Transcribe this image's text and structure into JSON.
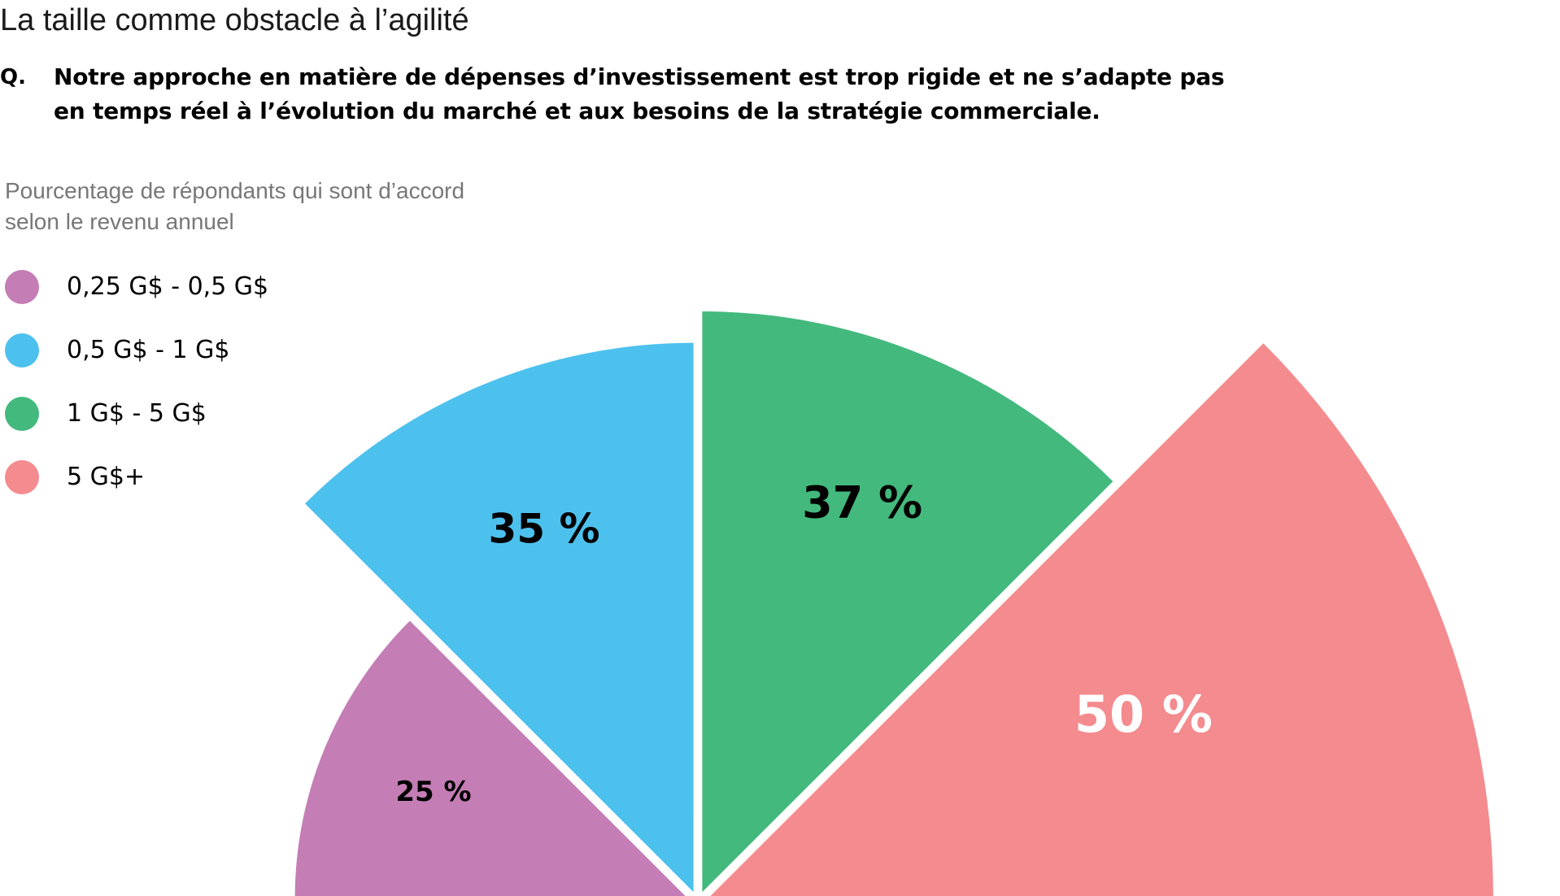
{
  "header": {
    "title": "La taille comme obstacle à l’agilité",
    "question_prefix": "Q.",
    "question_lines": [
      "Notre approche en matière de dépenses d’investissement est trop rigide et ne s’adapte pas",
      "en temps réel à l’évolution du marché et aux besoins de la stratégie commerciale."
    ]
  },
  "chart_data": {
    "type": "pie",
    "subtitle_lines": [
      "Pourcentage de répondants qui sont d’accord",
      "selon le revenu annuel"
    ],
    "series": [
      {
        "name": "0,25 G$ - 0,5 G$",
        "value": 25,
        "label": "25 %",
        "color": "#c47db5",
        "label_color": "#000000"
      },
      {
        "name": "0,5 G$ - 1 G$",
        "value": 35,
        "label": "35 %",
        "color": "#4dc1ee",
        "label_color": "#000000"
      },
      {
        "name": "1 G$ - 5 G$",
        "value": 37,
        "label": "37 %",
        "color": "#43b97d",
        "label_color": "#000000"
      },
      {
        "name": "5 G$+",
        "value": 50,
        "label": "50 %",
        "color": "#f48b8e",
        "label_color": "#ffffff"
      }
    ],
    "legend_position": "left"
  }
}
